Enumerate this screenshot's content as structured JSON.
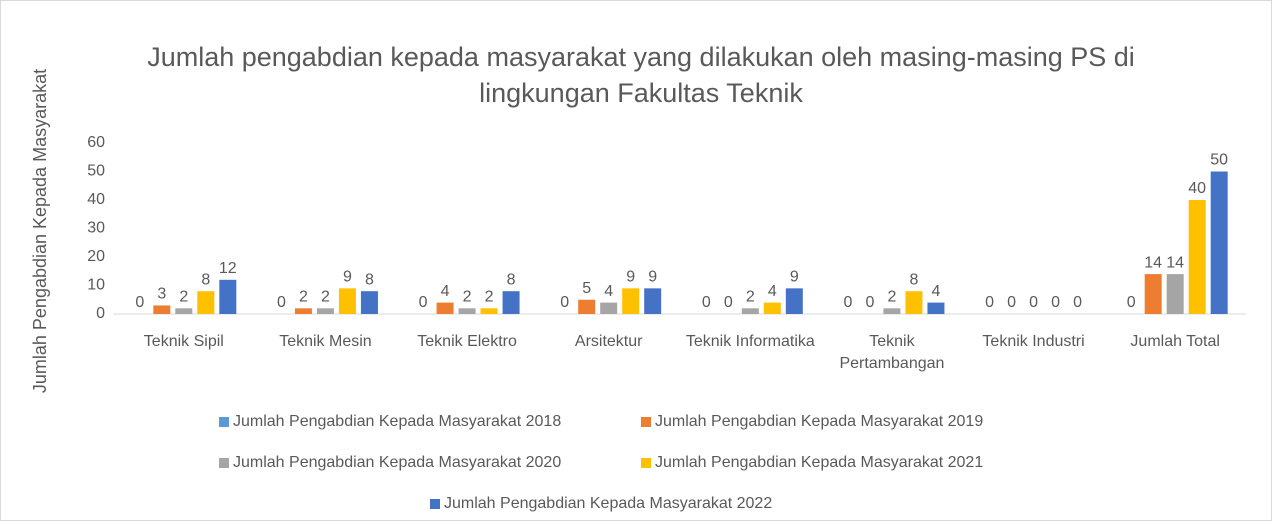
{
  "chart_data": {
    "type": "bar",
    "title": "Jumlah pengabdian kepada masyarakat yang dilakukan oleh masing-masing PS di lingkungan Fakultas Teknik",
    "y_axis_label": "Jumlah Pengabdian Kepada Masyarakat",
    "categories": [
      "Teknik Sipil",
      "Teknik Mesin",
      "Teknik Elektro",
      "Arsitektur",
      "Teknik Informatika",
      "Teknik Pertambangan",
      "Teknik Industri",
      "Jumlah Total"
    ],
    "series": [
      {
        "name": "Jumlah Pengabdian Kepada Masyarakat 2018",
        "color": "#5B9BD5",
        "values": [
          0,
          0,
          0,
          0,
          0,
          0,
          0,
          0
        ]
      },
      {
        "name": "Jumlah Pengabdian Kepada Masyarakat 2019",
        "color": "#ED7D31",
        "values": [
          3,
          2,
          4,
          5,
          0,
          0,
          0,
          14
        ]
      },
      {
        "name": "Jumlah Pengabdian Kepada Masyarakat 2020",
        "color": "#A5A5A5",
        "values": [
          2,
          2,
          2,
          4,
          2,
          2,
          0,
          14
        ]
      },
      {
        "name": "Jumlah Pengabdian Kepada Masyarakat 2021",
        "color": "#FFC000",
        "values": [
          8,
          9,
          2,
          9,
          4,
          8,
          0,
          40
        ]
      },
      {
        "name": "Jumlah Pengabdian Kepada Masyarakat 2022",
        "color": "#4472C4",
        "values": [
          12,
          8,
          8,
          9,
          9,
          4,
          0,
          50
        ]
      }
    ],
    "ylim": [
      0,
      60
    ],
    "yticks": [
      0,
      10,
      20,
      30,
      40,
      50,
      60
    ],
    "grid": false,
    "legend": "bottom"
  }
}
